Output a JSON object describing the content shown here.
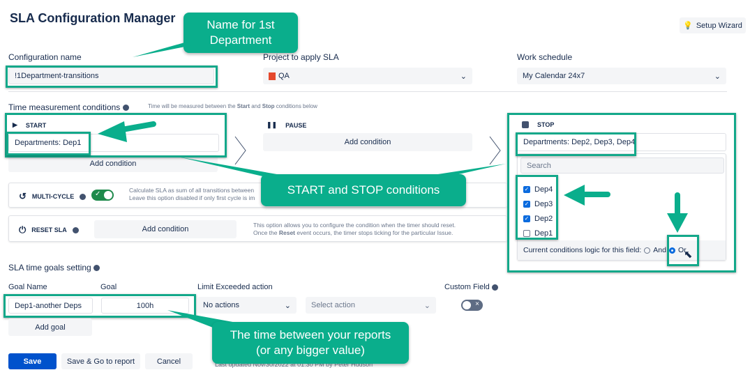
{
  "header": {
    "title": "SLA Configuration Manager",
    "setup_wizard": "Setup Wizard"
  },
  "config": {
    "name_label": "Configuration name",
    "name_value": "!1Department-transitions",
    "project_label": "Project to apply SLA",
    "project_value": "QA",
    "schedule_label": "Work schedule",
    "schedule_value": "My Calendar 24x7"
  },
  "time": {
    "title": "Time measurement conditions",
    "hint_pre": "Time will be measured between the ",
    "hint_start": "Start",
    "hint_mid": " and ",
    "hint_stop": "Stop",
    "hint_post": " conditions below",
    "start": {
      "label": "START",
      "condition": "Departments: Dep1",
      "add": "Add condition"
    },
    "pause": {
      "label": "PAUSE",
      "add": "Add condition"
    },
    "stop": {
      "label": "STOP",
      "condition": "Departments: Dep2, Dep3, Dep4",
      "search_placeholder": "Search",
      "options": [
        {
          "label": "Dep4",
          "checked": true
        },
        {
          "label": "Dep3",
          "checked": true
        },
        {
          "label": "Dep2",
          "checked": true
        },
        {
          "label": "Dep1",
          "checked": false
        }
      ],
      "logic_label": "Current conditions logic for this field:",
      "logic_and": "And",
      "logic_or": "Or",
      "logic_selected": "Or"
    },
    "multicycle": {
      "label": "MULTI-CYCLE",
      "enabled": true,
      "desc1": "Calculate SLA as sum of all transitions between",
      "desc2": "Leave this option disabled if only first cycle is im"
    },
    "reset": {
      "label": "RESET SLA",
      "add": "Add condition",
      "desc1": "This option allows you to configure the condition when the timer should reset.",
      "desc2_pre": "Once the ",
      "desc2_bold": "Reset",
      "desc2_post": " event occurs, the timer stops ticking for the particular Issue."
    }
  },
  "goals": {
    "title": "SLA time goals setting",
    "col_name": "Goal Name",
    "col_goal": "Goal",
    "col_limit": "Limit Exceeded action",
    "col_custom": "Custom Field",
    "name_value": "Dep1-another Deps",
    "goal_value": "100h",
    "limit_value": "No actions",
    "action_placeholder": "Select action",
    "custom_enabled": false,
    "add_goal": "Add goal"
  },
  "footer": {
    "save": "Save",
    "save_go": "Save & Go to report",
    "cancel": "Cancel",
    "last_updated": "Last updated Nov/30/2022 at 01:30 PM by Peter Hudson"
  },
  "annotations": {
    "name_callout": "Name for 1st Department",
    "conditions_callout": "START and STOP conditions",
    "time_callout_1": "The time between your reports",
    "time_callout_2": "(or any bigger value)"
  },
  "colors": {
    "accent": "#0052cc",
    "annotation": "#0aae8c",
    "toggle_on": "#1f8a4c"
  }
}
